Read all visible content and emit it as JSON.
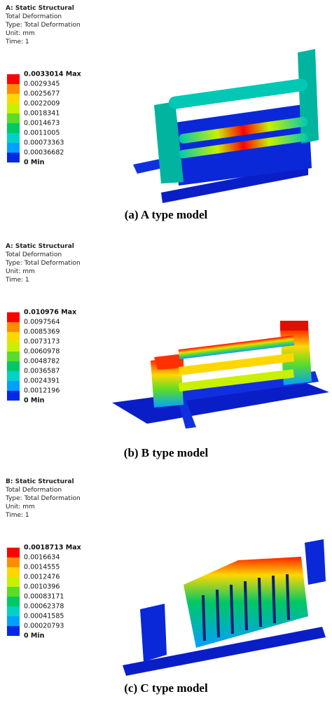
{
  "panels": [
    {
      "header": [
        "A: Static Structural",
        "Total Deformation",
        "Type: Total Deformation",
        "Unit: mm",
        "Time: 1"
      ],
      "legend": [
        "0.0033014 Max",
        "0.0029345",
        "0.0025677",
        "0.0022009",
        "0.0018341",
        "0.0014673",
        "0.0011005",
        "0.00073363",
        "0.00036682",
        "0 Min"
      ],
      "caption": "(a)  A  type  model"
    },
    {
      "header": [
        "A: Static Structural",
        "Total Deformation",
        "Type: Total Deformation",
        "Unit: mm",
        "Time: 1"
      ],
      "legend": [
        "0.010976 Max",
        "0.0097564",
        "0.0085369",
        "0.0073173",
        "0.0060978",
        "0.0048782",
        "0.0036587",
        "0.0024391",
        "0.0012196",
        "0 Min"
      ],
      "caption": "(b)  B  type  model"
    },
    {
      "header": [
        "B: Static Structural",
        "Total Deformation",
        "Type: Total Deformation",
        "Unit: mm",
        "Time: 1"
      ],
      "legend": [
        "0.0018713 Max",
        "0.0016634",
        "0.0014555",
        "0.0012476",
        "0.0010396",
        "0.00083171",
        "0.00062378",
        "0.00041585",
        "0.00020793",
        "0 Min"
      ],
      "caption": "(c)  C  type  model"
    }
  ]
}
